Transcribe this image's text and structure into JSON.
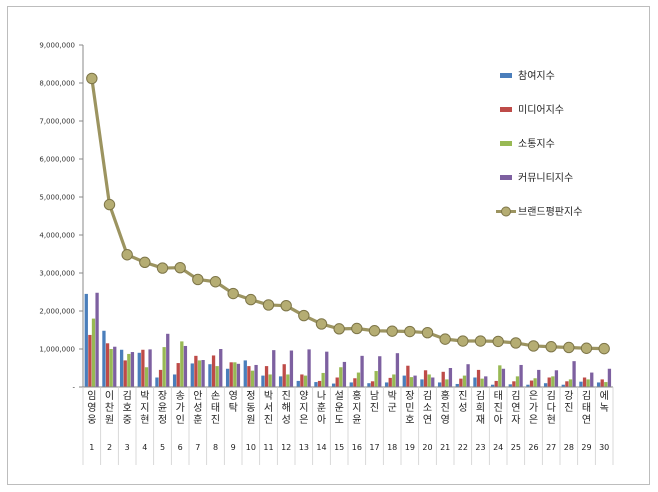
{
  "chart_data": {
    "type": "bar",
    "title": "",
    "xlabel": "",
    "ylabel": "",
    "ylim": [
      0,
      9000000
    ],
    "yticks": [
      "-",
      "1,000,000",
      "2,000,000",
      "3,000,000",
      "4,000,000",
      "5,000,000",
      "6,000,000",
      "7,000,000",
      "8,000,000",
      "9,000,000"
    ],
    "categories": [
      "임영웅",
      "이찬원",
      "김호중",
      "박지현",
      "장윤정",
      "송가인",
      "안성훈",
      "손태진",
      "영탁",
      "정동원",
      "박서진",
      "진해성",
      "양지은",
      "나훈아",
      "설운도",
      "홍지윤",
      "남진",
      "박군",
      "장민호",
      "김소연",
      "홍진영",
      "진성",
      "김희재",
      "태진아",
      "김연자",
      "은가은",
      "김다현",
      "강진",
      "김태연",
      "에녹"
    ],
    "ranks": [
      "1",
      "2",
      "3",
      "4",
      "5",
      "6",
      "7",
      "8",
      "9",
      "10",
      "11",
      "12",
      "13",
      "14",
      "15",
      "16",
      "17",
      "18",
      "19",
      "20",
      "21",
      "22",
      "23",
      "24",
      "25",
      "26",
      "27",
      "28",
      "29",
      "30"
    ],
    "series": [
      {
        "name": "참여지수",
        "color": "#4a7ebb",
        "kind": "bar",
        "values": [
          2450000,
          1480000,
          980000,
          900000,
          250000,
          330000,
          620000,
          600000,
          480000,
          700000,
          300000,
          280000,
          160000,
          130000,
          90000,
          120000,
          100000,
          120000,
          300000,
          200000,
          120000,
          80000,
          250000,
          60000,
          70000,
          60000,
          100000,
          60000,
          140000,
          120000
        ]
      },
      {
        "name": "미디어지수",
        "color": "#be4b48",
        "kind": "bar",
        "values": [
          1370000,
          1150000,
          700000,
          980000,
          450000,
          630000,
          820000,
          830000,
          650000,
          550000,
          550000,
          600000,
          330000,
          160000,
          250000,
          230000,
          150000,
          240000,
          560000,
          440000,
          400000,
          220000,
          450000,
          160000,
          150000,
          170000,
          250000,
          150000,
          250000,
          200000
        ]
      },
      {
        "name": "소통지수",
        "color": "#98b954",
        "kind": "bar",
        "values": [
          1800000,
          1000000,
          870000,
          520000,
          1050000,
          1200000,
          700000,
          550000,
          650000,
          430000,
          330000,
          330000,
          300000,
          370000,
          520000,
          380000,
          420000,
          330000,
          260000,
          330000,
          200000,
          300000,
          220000,
          570000,
          280000,
          230000,
          280000,
          200000,
          200000,
          130000
        ]
      },
      {
        "name": "커뮤니티지수",
        "color": "#7d60a0",
        "kind": "bar",
        "values": [
          2480000,
          1060000,
          920000,
          990000,
          1400000,
          1080000,
          710000,
          1000000,
          610000,
          580000,
          970000,
          960000,
          990000,
          930000,
          660000,
          820000,
          810000,
          890000,
          300000,
          250000,
          500000,
          600000,
          280000,
          480000,
          580000,
          450000,
          440000,
          680000,
          380000,
          480000
        ]
      },
      {
        "name": "브랜드평판지수",
        "color": "#9c9460",
        "kind": "line",
        "values": [
          8120000,
          4800000,
          3480000,
          3280000,
          3130000,
          3140000,
          2830000,
          2770000,
          2460000,
          2300000,
          2160000,
          2140000,
          1880000,
          1660000,
          1530000,
          1540000,
          1480000,
          1470000,
          1460000,
          1430000,
          1260000,
          1210000,
          1210000,
          1200000,
          1160000,
          1080000,
          1060000,
          1040000,
          1020000,
          1010000
        ]
      }
    ],
    "legend_position": "right",
    "grid": false
  }
}
